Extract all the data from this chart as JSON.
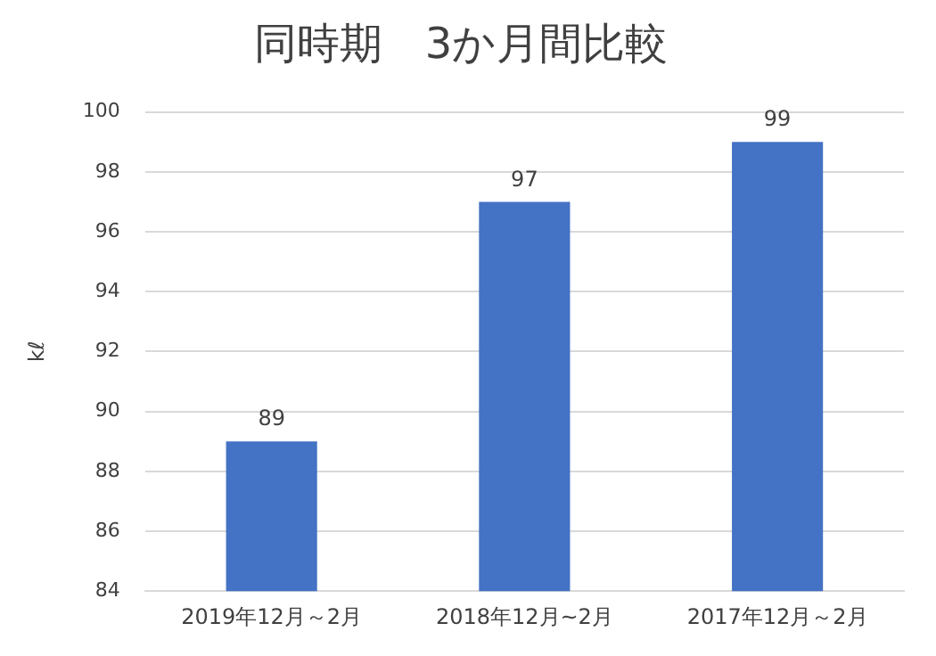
{
  "chart_data": {
    "type": "bar",
    "title": "同時期　3か月間比較",
    "ylabel": "kℓ",
    "categories": [
      "2019年12月～2月",
      "2018年12月~2月",
      "2017年12月～2月"
    ],
    "values": [
      89,
      97,
      99
    ],
    "color": "#4472c4",
    "ylim": [
      84,
      100
    ],
    "yticks": [
      84,
      86,
      88,
      90,
      92,
      94,
      96,
      98,
      100
    ],
    "grid": "y",
    "data_labels": true,
    "legend": false
  }
}
